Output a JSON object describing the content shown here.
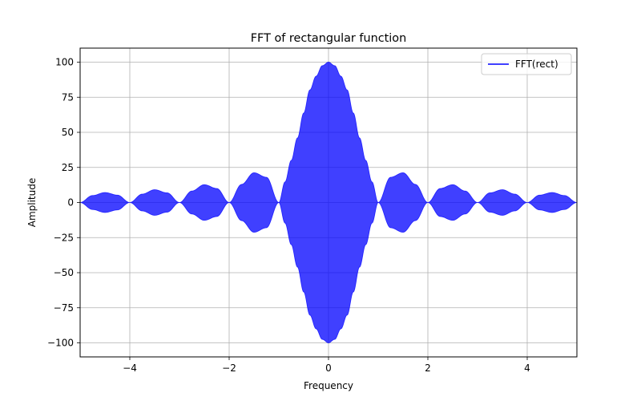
{
  "chart_data": {
    "type": "area",
    "title": "FFT of rectangular function",
    "xlabel": "Frequency",
    "ylabel": "Amplitude",
    "xlim": [
      -5,
      5
    ],
    "ylim": [
      -110,
      110
    ],
    "grid": true,
    "legend_position": "top-right",
    "x_ticks": [
      -4,
      -2,
      0,
      2,
      4
    ],
    "x_tick_labels": [
      "−4",
      "−2",
      "0",
      "2",
      "4"
    ],
    "y_ticks": [
      -100,
      -75,
      -50,
      -25,
      0,
      25,
      50,
      75,
      100
    ],
    "y_tick_labels": [
      "−100",
      "−75",
      "−50",
      "−25",
      "0",
      "25",
      "50",
      "75",
      "100"
    ],
    "series": [
      {
        "name": "FFT(rect)",
        "color": "#0000ff",
        "opacity": 0.75,
        "x": [
          -5,
          -4.75,
          -4.5,
          -4.25,
          -4,
          -3.75,
          -3.5,
          -3.25,
          -3,
          -2.75,
          -2.5,
          -2.25,
          -2,
          -1.75,
          -1.5,
          -1.25,
          -1,
          -0.875,
          -0.75,
          -0.625,
          -0.5,
          -0.375,
          -0.25,
          -0.125,
          0,
          0.125,
          0.25,
          0.375,
          0.5,
          0.625,
          0.75,
          0.875,
          1,
          1.25,
          1.5,
          1.75,
          2,
          2.25,
          2.5,
          2.75,
          3,
          3.25,
          3.5,
          3.75,
          4,
          4.25,
          4.5,
          4.75,
          5
        ],
        "envelope": [
          0,
          5.0,
          7.1,
          5.3,
          0,
          6.0,
          9.1,
          6.9,
          0,
          8.2,
          12.7,
          10.0,
          0,
          12.9,
          21.2,
          18.0,
          0,
          14.7,
          30.0,
          46.0,
          63.7,
          80.2,
          90.0,
          97.5,
          100,
          97.5,
          90.0,
          80.2,
          63.7,
          46.0,
          30.0,
          14.7,
          0,
          18.0,
          21.2,
          12.9,
          0,
          10.0,
          12.7,
          8.2,
          0,
          6.9,
          9.1,
          6.0,
          0,
          5.3,
          7.1,
          5.0,
          0
        ]
      }
    ]
  }
}
